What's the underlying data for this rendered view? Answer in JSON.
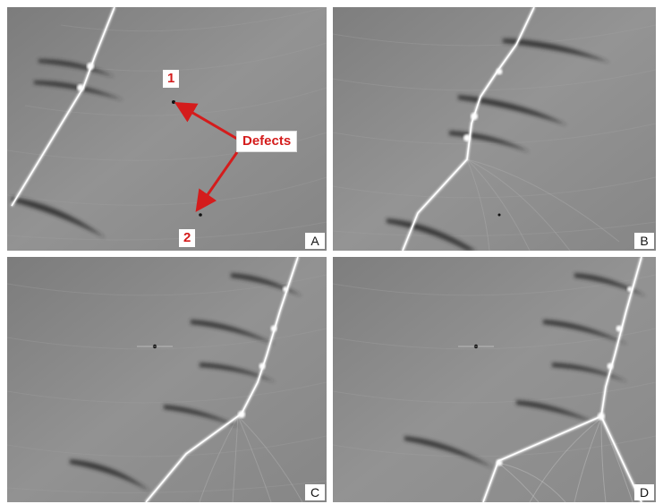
{
  "panels": [
    {
      "letter": "A"
    },
    {
      "letter": "B"
    },
    {
      "letter": "C"
    },
    {
      "letter": "D"
    }
  ],
  "annotations": {
    "defects_label": "Defects",
    "marker_1": "1",
    "marker_2": "2",
    "arrow_color": "#d41c1c"
  },
  "colors": {
    "background_gray": "#8a8a8a",
    "bright_line": "#ffffff",
    "dark_streak": "#2a2a2a",
    "annotation_red": "#d41c1c"
  }
}
